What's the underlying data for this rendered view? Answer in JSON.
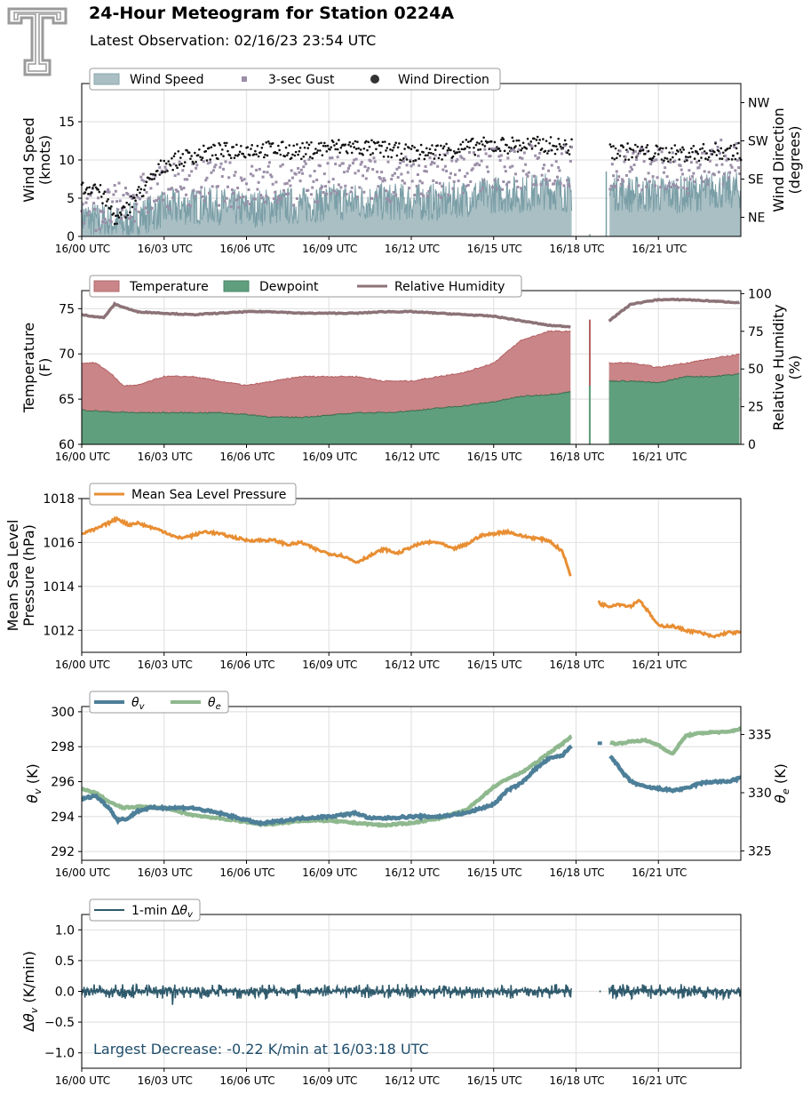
{
  "header": {
    "title": "24-Hour Meteogram for Station 0224A",
    "subtitle": "Latest Observation: 02/16/23 23:54 UTC",
    "logo_icon": "texas-tech-double-t-logo-icon"
  },
  "colors": {
    "wind_speed": "#7a9ea6",
    "wind_fill": "#a9bfc4",
    "gust": "#9b8ea8",
    "direction": "#111111",
    "temperature": "#c98587",
    "temperature_line": "#b55f62",
    "dewpoint": "#5f9f7d",
    "dewpoint_line": "#3c6c4e",
    "rh": "#8c7378",
    "pressure": "#e88e33",
    "theta_v": "#4d7f99",
    "theta_e": "#8fb88e",
    "dtheta": "#2f5a6c",
    "annotation": "#1f4e6c"
  },
  "chart_data": [
    {
      "id": "wind",
      "type": "area",
      "ylabel": "Wind Speed\n(knots)",
      "ylabel2": "Wind Direction\n(degrees)",
      "ylim": [
        0,
        20
      ],
      "yticks": [
        0,
        5,
        10,
        15
      ],
      "y2ticks": [
        "NE",
        "SE",
        "SW",
        "NW"
      ],
      "y2values": [
        45,
        135,
        225,
        315
      ],
      "y2lim": [
        0,
        360
      ],
      "xticks": [
        "16/00 UTC",
        "16/03 UTC",
        "16/06 UTC",
        "16/09 UTC",
        "16/12 UTC",
        "16/15 UTC",
        "16/18 UTC",
        "16/21 UTC"
      ],
      "xlim_hours": [
        0,
        24
      ],
      "grid": true,
      "legend": [
        {
          "label": "Wind Speed",
          "kind": "patch"
        },
        {
          "label": "3-sec Gust",
          "kind": "square"
        },
        {
          "label": "Wind Direction",
          "kind": "dot"
        }
      ],
      "legend_position": "top-left",
      "series": [
        {
          "key": "wind_speed",
          "hours": [
            0,
            0.5,
            1,
            1.5,
            2,
            3,
            4,
            5,
            6,
            7,
            8,
            9,
            10,
            11,
            12,
            13,
            14,
            15,
            16,
            17,
            17.8,
            19.2,
            20,
            21,
            22,
            23,
            24
          ],
          "values": [
            2.5,
            2,
            2,
            1.5,
            2.5,
            3.5,
            4,
            4,
            3.5,
            4,
            4,
            4.5,
            4.5,
            4.5,
            4.5,
            4.5,
            5,
            5.5,
            5.5,
            6,
            5.5,
            6,
            5.5,
            5.5,
            5.5,
            6,
            6
          ]
        },
        {
          "key": "gust",
          "hours": [
            0,
            1,
            2,
            3,
            4,
            5,
            6,
            7,
            8,
            9,
            10,
            11,
            12,
            13,
            14,
            15,
            16,
            17,
            17.8,
            19.2,
            20,
            21,
            22,
            23,
            24
          ],
          "values": [
            4,
            3.5,
            5,
            6.5,
            7,
            7,
            6.5,
            7,
            7,
            7.5,
            7.5,
            7.5,
            7.5,
            8,
            8.5,
            9,
            9,
            9.5,
            9,
            9,
            9,
            8.5,
            8.5,
            9.5,
            10
          ]
        },
        {
          "key": "direction_deg",
          "hours": [
            0,
            0.5,
            1,
            1.3,
            1.8,
            2.5,
            3,
            4,
            5,
            6,
            7,
            8,
            9,
            10,
            11,
            12,
            13,
            14,
            15,
            16,
            17,
            17.8,
            19.2,
            20,
            21,
            22,
            23,
            24
          ],
          "values": [
            110,
            120,
            70,
            35,
            80,
            130,
            170,
            190,
            200,
            205,
            205,
            200,
            210,
            210,
            205,
            195,
            200,
            210,
            215,
            215,
            215,
            210,
            200,
            200,
            195,
            195,
            200,
            200
          ]
        }
      ]
    },
    {
      "id": "temperature",
      "type": "area",
      "ylabel": "Temperature\n(F)",
      "ylabel2": "Relative Humidity\n(%)",
      "ylim": [
        60,
        77
      ],
      "yticks": [
        60,
        65,
        70,
        75
      ],
      "y2lim": [
        0,
        102
      ],
      "y2ticks": [
        0,
        25,
        50,
        75,
        100
      ],
      "xticks": [
        "16/00 UTC",
        "16/03 UTC",
        "16/06 UTC",
        "16/09 UTC",
        "16/12 UTC",
        "16/15 UTC",
        "16/18 UTC",
        "16/21 UTC"
      ],
      "grid": true,
      "legend": [
        {
          "label": "Temperature",
          "kind": "patch"
        },
        {
          "label": "Dewpoint",
          "kind": "patch"
        },
        {
          "label": "Relative Humidity",
          "kind": "line"
        }
      ],
      "legend_position": "top-left",
      "series": [
        {
          "key": "temperature",
          "hours": [
            0,
            0.5,
            1,
            1.5,
            2,
            3,
            4,
            5,
            6,
            7,
            8,
            9,
            10,
            11,
            12,
            13,
            14,
            15,
            16,
            17,
            17.8,
            19.2,
            20,
            21,
            22,
            23,
            24
          ],
          "values": [
            69,
            69,
            68,
            66.5,
            66.5,
            67.5,
            67.5,
            67,
            66.5,
            67,
            67.5,
            67.5,
            67.5,
            67,
            67,
            67.5,
            68,
            69,
            71.5,
            72.5,
            72.5,
            69,
            69,
            68.5,
            69,
            69.5,
            70
          ]
        },
        {
          "key": "dewpoint",
          "hours": [
            0,
            1,
            2,
            3,
            4,
            5,
            6,
            7,
            8,
            9,
            10,
            11,
            12,
            13,
            14,
            15,
            16,
            17,
            17.8,
            19.2,
            20,
            21,
            22,
            23,
            24
          ],
          "values": [
            63.8,
            63.6,
            63.5,
            63.5,
            63.5,
            63.5,
            63.3,
            63,
            63,
            63.2,
            63.5,
            63.5,
            63.7,
            64,
            64.3,
            64.7,
            65.3,
            65.5,
            65.8,
            67,
            67,
            66.8,
            67.5,
            67.5,
            67.8
          ]
        },
        {
          "key": "relative_humidity",
          "hours": [
            0,
            0.8,
            1.2,
            2,
            3,
            4,
            5,
            6,
            7,
            8,
            9,
            10,
            11,
            12,
            13,
            14,
            15,
            16,
            17,
            17.8,
            19.2,
            20,
            21,
            22,
            23,
            24
          ],
          "values": [
            86,
            84,
            93,
            88,
            87,
            86,
            87,
            88,
            88,
            87,
            87,
            87,
            88,
            88,
            87,
            86,
            85,
            82,
            79,
            78,
            82,
            93,
            96,
            96,
            95,
            94
          ]
        }
      ]
    },
    {
      "id": "pressure",
      "type": "line",
      "ylabel": "Mean Sea Level\nPressure (hPa)",
      "ylim": [
        1011,
        1018
      ],
      "yticks": [
        1012,
        1014,
        1016,
        1018
      ],
      "xticks": [
        "16/00 UTC",
        "16/03 UTC",
        "16/06 UTC",
        "16/09 UTC",
        "16/12 UTC",
        "16/15 UTC",
        "16/18 UTC",
        "16/21 UTC"
      ],
      "grid": true,
      "legend": [
        {
          "label": "Mean Sea Level Pressure",
          "kind": "line"
        }
      ],
      "legend_position": "top-left",
      "series": [
        {
          "key": "mslp",
          "hours": [
            0,
            0.5,
            1,
            1.3,
            1.7,
            2,
            2.5,
            3,
            3.5,
            4,
            4.5,
            5,
            6,
            7,
            7.5,
            8,
            8.5,
            9,
            9.5,
            10,
            10.5,
            11,
            11.5,
            12,
            12.5,
            13,
            13.5,
            14,
            14.5,
            15,
            15.5,
            16,
            16.5,
            17,
            17.5,
            17.8
          ],
          "values": [
            1016.4,
            1016.6,
            1016.9,
            1017.1,
            1016.8,
            1016.9,
            1016.7,
            1016.5,
            1016.2,
            1016.3,
            1016.5,
            1016.4,
            1016.1,
            1016.1,
            1015.9,
            1016.0,
            1015.7,
            1015.5,
            1015.4,
            1015.1,
            1015.4,
            1015.7,
            1015.5,
            1015.8,
            1016.0,
            1016.0,
            1015.7,
            1015.9,
            1016.3,
            1016.4,
            1016.5,
            1016.3,
            1016.2,
            1016.1,
            1015.6,
            1014.5
          ]
        },
        {
          "key": "mslp_late",
          "hours": [
            18.8,
            18.9,
            19.2,
            19.5,
            20,
            20.3,
            20.6,
            21,
            21.5,
            22,
            22.5,
            23,
            23.5,
            24
          ],
          "values": [
            1013.3,
            1013.2,
            1013.1,
            1013.2,
            1013.1,
            1013.4,
            1012.9,
            1012.2,
            1012.2,
            1012.0,
            1011.9,
            1011.7,
            1011.9,
            1011.9
          ]
        }
      ]
    },
    {
      "id": "theta",
      "type": "line",
      "ylabel": "θv (K)",
      "ylabel2": "θe (K)",
      "ylim": [
        291.5,
        300.3
      ],
      "yticks": [
        292,
        294,
        296,
        298,
        300
      ],
      "y2lim": [
        324.2,
        337.4
      ],
      "y2ticks": [
        325,
        330,
        335
      ],
      "xticks": [
        "16/00 UTC",
        "16/03 UTC",
        "16/06 UTC",
        "16/09 UTC",
        "16/12 UTC",
        "16/15 UTC",
        "16/18 UTC",
        "16/21 UTC"
      ],
      "grid": true,
      "legend": [
        {
          "label": "θv",
          "kind": "line"
        },
        {
          "label": "θe",
          "kind": "line"
        }
      ],
      "legend_position": "top-left",
      "series": [
        {
          "key": "theta_v",
          "hours": [
            0,
            0.5,
            1,
            1.3,
            1.7,
            2,
            2.5,
            3,
            3.5,
            4,
            5,
            6,
            6.5,
            7,
            8,
            9,
            10,
            10.5,
            11,
            12,
            13,
            14,
            15,
            15.5,
            16,
            16.5,
            17,
            17.5,
            17.8,
            18.7,
            19,
            19.3,
            19.7,
            20,
            20.5,
            21,
            21.5,
            22,
            22.5,
            23,
            23.5,
            24
          ],
          "values": [
            295.0,
            295.2,
            294.5,
            293.8,
            293.9,
            294.3,
            294.5,
            294.5,
            294.5,
            294.5,
            294.2,
            293.8,
            293.6,
            293.7,
            293.9,
            294.0,
            294.2,
            293.9,
            293.9,
            294.0,
            294.0,
            294.2,
            294.7,
            295.5,
            295.9,
            296.7,
            297.3,
            297.5,
            298.0,
            298.2,
            298.0,
            297.4,
            296.5,
            296.0,
            295.7,
            295.6,
            295.5,
            295.6,
            295.9,
            296.0,
            296.0,
            296.2
          ]
        },
        {
          "key": "theta_e",
          "hours": [
            0,
            0.5,
            1,
            1.5,
            2,
            3,
            4,
            5,
            6,
            6.5,
            7,
            8,
            9,
            10,
            11,
            12,
            13,
            14,
            14.5,
            15,
            15.5,
            16,
            16.5,
            17,
            17.5,
            17.8,
            18.7,
            19,
            19.5,
            20,
            20.5,
            21,
            21.5,
            22,
            22.5,
            23,
            23.5,
            24
          ],
          "values": [
            330.3,
            330.0,
            329.2,
            328.7,
            328.8,
            328.7,
            328.1,
            327.8,
            327.5,
            327.3,
            327.3,
            327.6,
            327.6,
            327.4,
            327.2,
            327.4,
            327.8,
            328.5,
            329.5,
            330.5,
            331.2,
            331.7,
            332.5,
            333.4,
            334.2,
            334.8,
            334.7,
            334.4,
            334.2,
            334.4,
            334.5,
            334.1,
            333.3,
            334.9,
            335.1,
            335.2,
            335.2,
            335.5
          ]
        }
      ]
    },
    {
      "id": "dtheta",
      "type": "line",
      "ylabel": "Δθv (K/min)",
      "ylim": [
        -1.25,
        1.25
      ],
      "yticks": [
        -1.0,
        -0.5,
        0.0,
        0.5,
        1.0
      ],
      "xticks": [
        "16/00 UTC",
        "16/03 UTC",
        "16/06 UTC",
        "16/09 UTC",
        "16/12 UTC",
        "16/15 UTC",
        "16/18 UTC",
        "16/21 UTC"
      ],
      "grid": true,
      "legend": [
        {
          "label": "1-min Δθv",
          "kind": "line"
        }
      ],
      "legend_position": "top-left",
      "annotation": "Largest Decrease: -0.22 K/min at 16/03:18 UTC",
      "series": [
        {
          "key": "dtheta_v",
          "noise_amplitude": 0.12,
          "min_value": -0.22,
          "min_hour": 3.3
        }
      ]
    }
  ]
}
